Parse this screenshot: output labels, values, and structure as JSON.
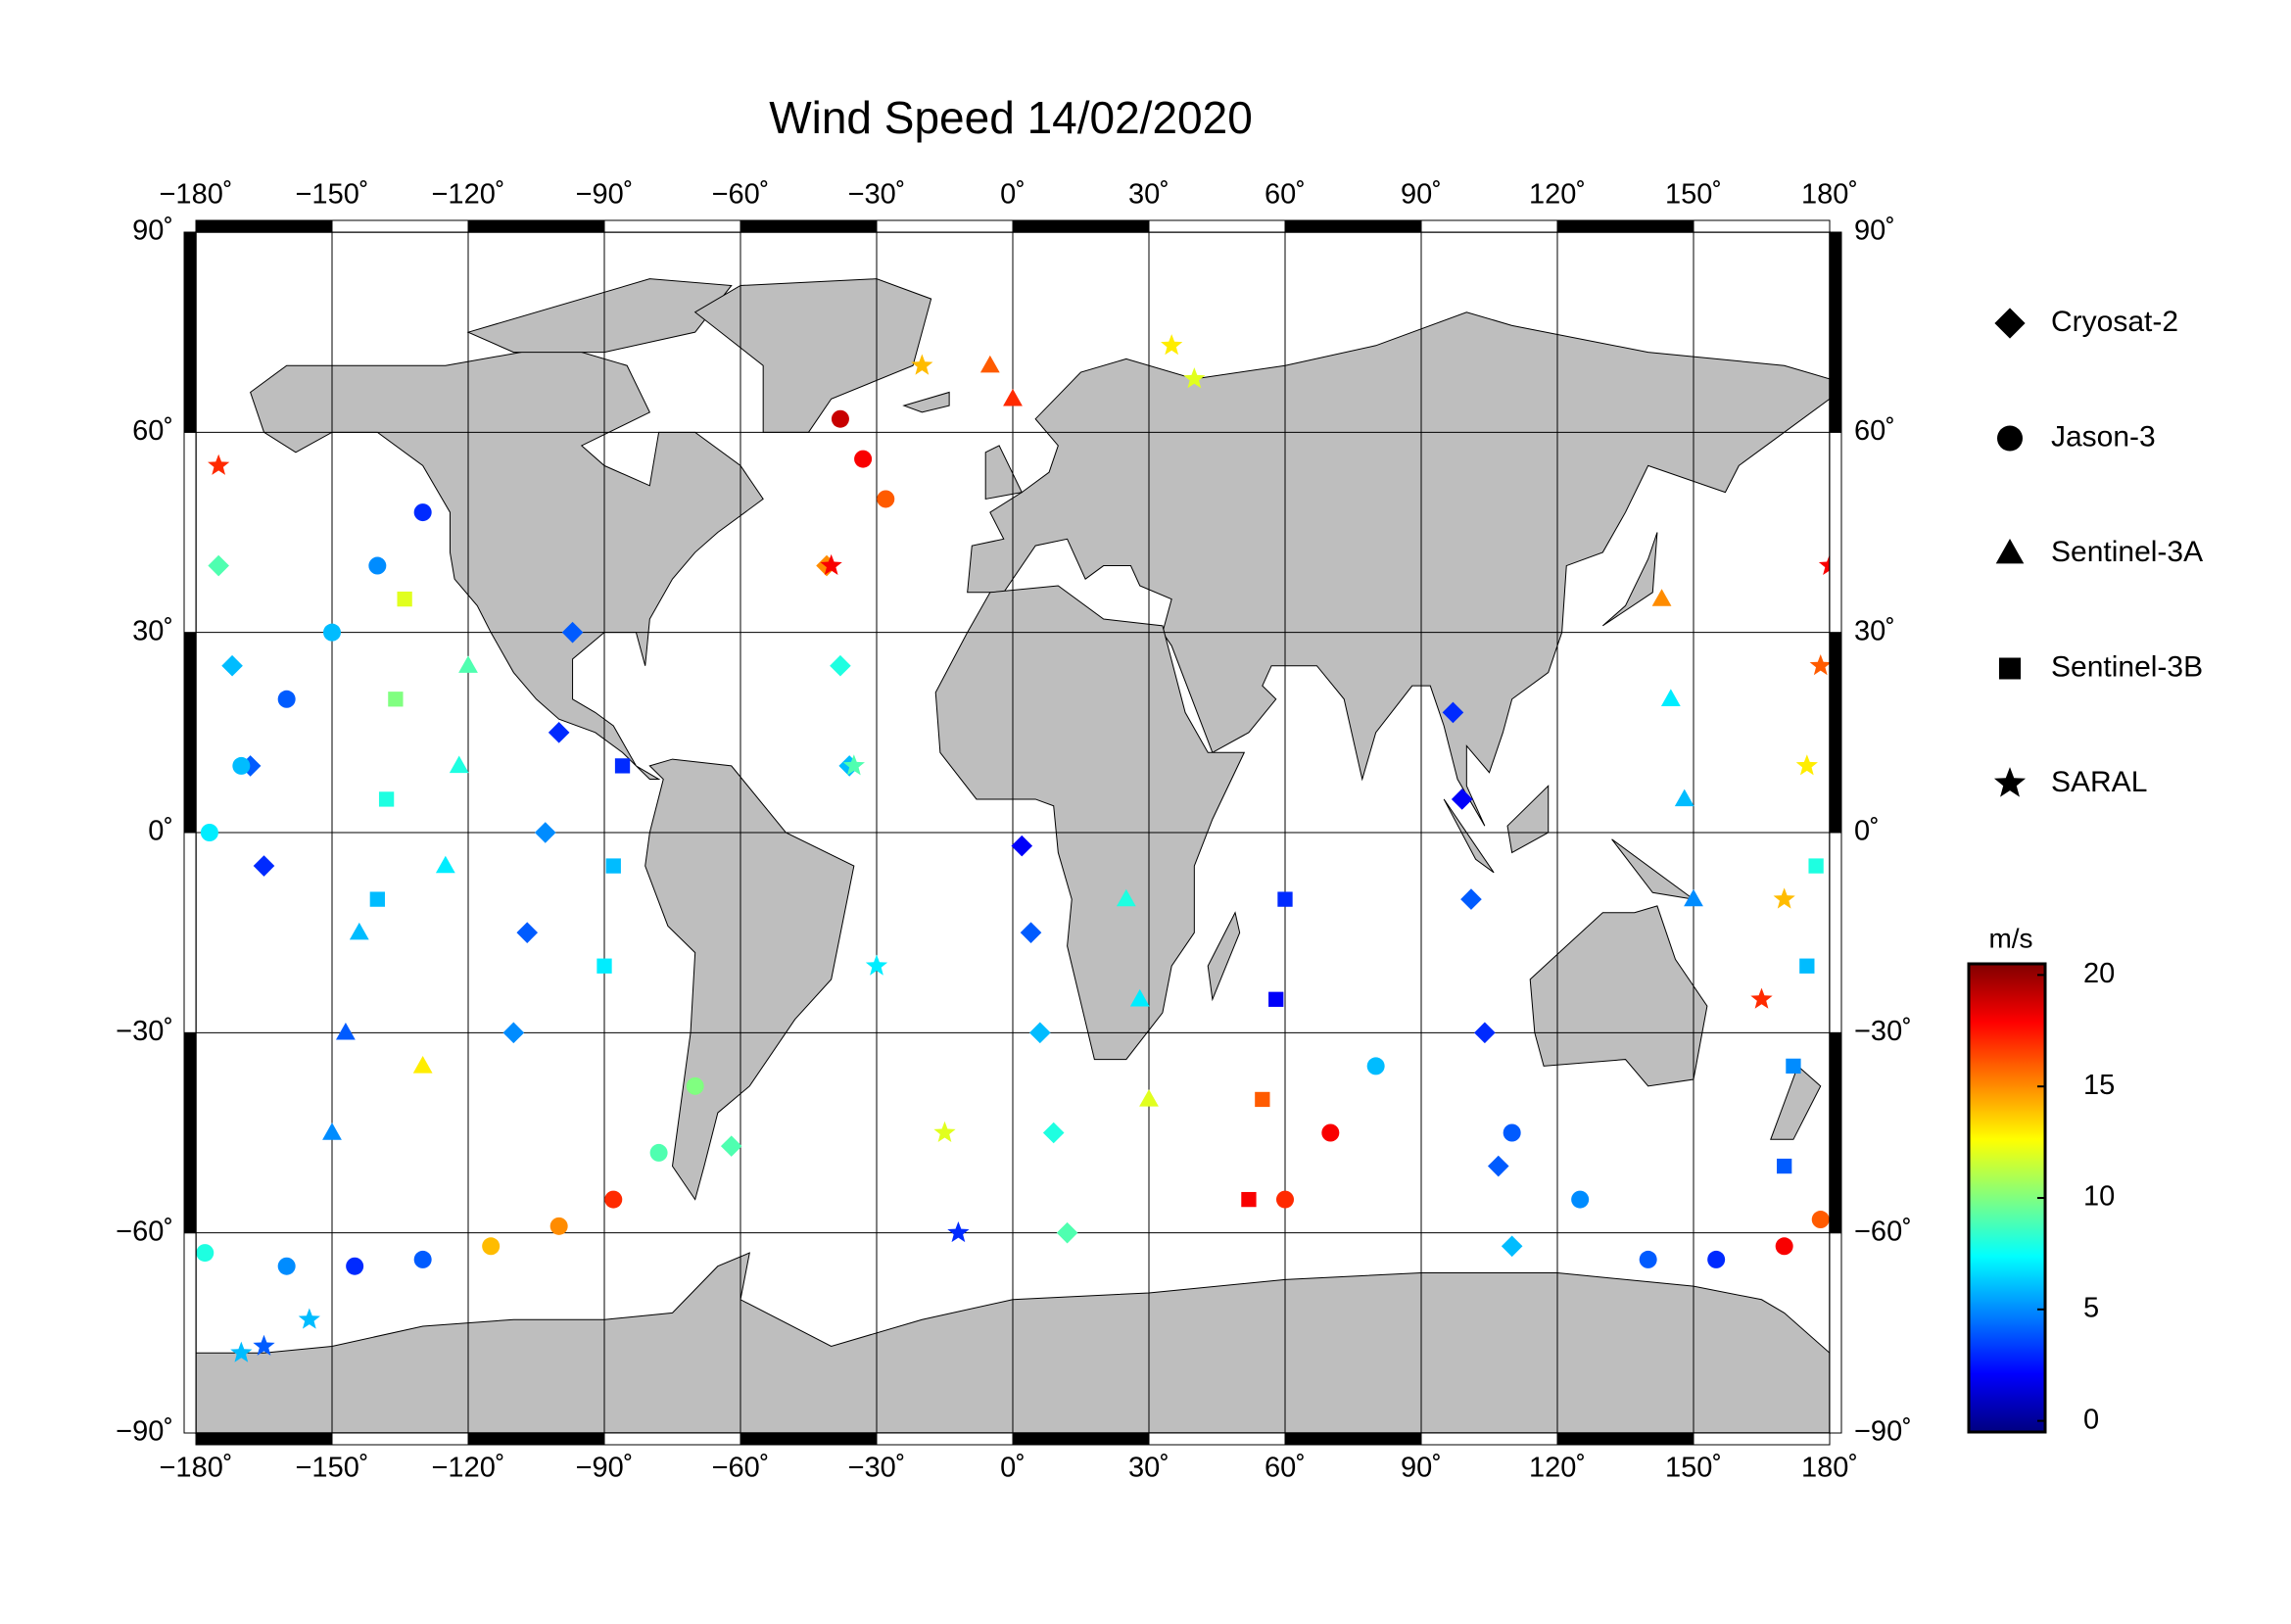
{
  "chart_data": {
    "type": "map",
    "title": "Wind Speed 14/02/2020",
    "xlim": [
      -180,
      180
    ],
    "ylim": [
      -90,
      90
    ],
    "xticks": [
      {
        "value": -180,
        "label": "−180˚"
      },
      {
        "value": -150,
        "label": "−150˚"
      },
      {
        "value": -120,
        "label": "−120˚"
      },
      {
        "value": -90,
        "label": "−90˚"
      },
      {
        "value": -60,
        "label": "−60˚"
      },
      {
        "value": -30,
        "label": "−30˚"
      },
      {
        "value": 0,
        "label": "0˚"
      },
      {
        "value": 30,
        "label": "30˚"
      },
      {
        "value": 60,
        "label": "60˚"
      },
      {
        "value": 90,
        "label": "90˚"
      },
      {
        "value": 120,
        "label": "120˚"
      },
      {
        "value": 150,
        "label": "150˚"
      },
      {
        "value": 180,
        "label": "180˚"
      }
    ],
    "yticks": [
      {
        "value": -90,
        "label": "−90˚"
      },
      {
        "value": -60,
        "label": "−60˚"
      },
      {
        "value": -30,
        "label": "−30˚"
      },
      {
        "value": 0,
        "label": "0˚"
      },
      {
        "value": 30,
        "label": "30˚"
      },
      {
        "value": 60,
        "label": "60˚"
      },
      {
        "value": 90,
        "label": "90˚"
      }
    ],
    "grid": true,
    "colorbar": {
      "label": "m/s",
      "lim": [
        -0.5,
        20.5
      ],
      "ticks": [
        0,
        5,
        10,
        15,
        20
      ],
      "colormap": "jet"
    },
    "series": [
      {
        "name": "Cryosat-2",
        "marker": "diamond",
        "points": [
          [
            -165,
            -5,
            3
          ],
          [
            -168,
            10,
            4
          ],
          [
            -172,
            25,
            6
          ],
          [
            -175,
            40,
            9
          ],
          [
            -97,
            30,
            4
          ],
          [
            -100,
            15,
            3
          ],
          [
            -103,
            0,
            5
          ],
          [
            -107,
            -15,
            4
          ],
          [
            -110,
            -30,
            5
          ],
          [
            2,
            -2,
            2
          ],
          [
            4,
            -15,
            4
          ],
          [
            6,
            -30,
            6
          ],
          [
            9,
            -45,
            8
          ],
          [
            12,
            -60,
            9
          ],
          [
            97,
            18,
            3
          ],
          [
            99,
            5,
            2
          ],
          [
            101,
            -10,
            4
          ],
          [
            104,
            -30,
            3
          ],
          [
            107,
            -50,
            4
          ],
          [
            110,
            -62,
            6
          ],
          [
            -62,
            -47,
            9
          ],
          [
            -41,
            40,
            15
          ],
          [
            -38,
            25,
            8
          ],
          [
            -36,
            10,
            6
          ]
        ]
      },
      {
        "name": "Jason-3",
        "marker": "circle",
        "points": [
          [
            -178,
            -63,
            8
          ],
          [
            -160,
            -65,
            5
          ],
          [
            -145,
            -65,
            3
          ],
          [
            -130,
            -64,
            4
          ],
          [
            -115,
            -62,
            14
          ],
          [
            -100,
            -59,
            15
          ],
          [
            -88,
            -55,
            17
          ],
          [
            -78,
            -48,
            9
          ],
          [
            -70,
            -38,
            10
          ],
          [
            -38,
            62,
            19
          ],
          [
            -33,
            56,
            18
          ],
          [
            -28,
            50,
            16
          ],
          [
            -130,
            48,
            3
          ],
          [
            -140,
            40,
            5
          ],
          [
            -150,
            30,
            6
          ],
          [
            -160,
            20,
            4
          ],
          [
            -170,
            10,
            6
          ],
          [
            -177,
            0,
            7
          ],
          [
            110,
            -45,
            4
          ],
          [
            125,
            -55,
            5
          ],
          [
            140,
            -64,
            4
          ],
          [
            155,
            -64,
            3
          ],
          [
            170,
            -62,
            18
          ],
          [
            178,
            -58,
            16
          ],
          [
            60,
            -55,
            17
          ],
          [
            70,
            -45,
            18
          ],
          [
            80,
            -35,
            6
          ]
        ]
      },
      {
        "name": "Sentinel-3A",
        "marker": "triangle",
        "points": [
          [
            -125,
            -5,
            7
          ],
          [
            -122,
            10,
            8
          ],
          [
            -120,
            25,
            9
          ],
          [
            -150,
            -45,
            5
          ],
          [
            -147,
            -30,
            4
          ],
          [
            -144,
            -15,
            6
          ],
          [
            30,
            -40,
            12
          ],
          [
            28,
            -25,
            7
          ],
          [
            25,
            -10,
            8
          ],
          [
            150,
            -10,
            5
          ],
          [
            148,
            5,
            6
          ],
          [
            145,
            20,
            7
          ],
          [
            143,
            35,
            15
          ],
          [
            -5,
            70,
            16
          ],
          [
            0,
            65,
            17
          ],
          [
            -130,
            -35,
            13
          ]
        ]
      },
      {
        "name": "Sentinel-3B",
        "marker": "square",
        "points": [
          [
            -140,
            -10,
            6
          ],
          [
            -138,
            5,
            8
          ],
          [
            -136,
            20,
            10
          ],
          [
            -134,
            35,
            12
          ],
          [
            60,
            -10,
            3
          ],
          [
            58,
            -25,
            2
          ],
          [
            55,
            -40,
            16
          ],
          [
            52,
            -55,
            18
          ],
          [
            170,
            -50,
            4
          ],
          [
            172,
            -35,
            5
          ],
          [
            175,
            -20,
            6
          ],
          [
            177,
            -5,
            8
          ],
          [
            -90,
            -20,
            7
          ],
          [
            -88,
            -5,
            6
          ],
          [
            -86,
            10,
            3
          ]
        ]
      },
      {
        "name": "SARAL",
        "marker": "star",
        "points": [
          [
            -170,
            -78,
            6
          ],
          [
            -165,
            -77,
            4
          ],
          [
            -155,
            -73,
            6
          ],
          [
            -40,
            40,
            18
          ],
          [
            -35,
            10,
            9
          ],
          [
            -30,
            -20,
            7
          ],
          [
            -20,
            70,
            14
          ],
          [
            -15,
            -45,
            12
          ],
          [
            -12,
            -60,
            3
          ],
          [
            165,
            -25,
            17
          ],
          [
            170,
            -10,
            14
          ],
          [
            175,
            10,
            13
          ],
          [
            178,
            25,
            16
          ],
          [
            180,
            40,
            18
          ],
          [
            35,
            73,
            13
          ],
          [
            40,
            68,
            12
          ],
          [
            -175,
            55,
            17
          ]
        ]
      }
    ]
  }
}
